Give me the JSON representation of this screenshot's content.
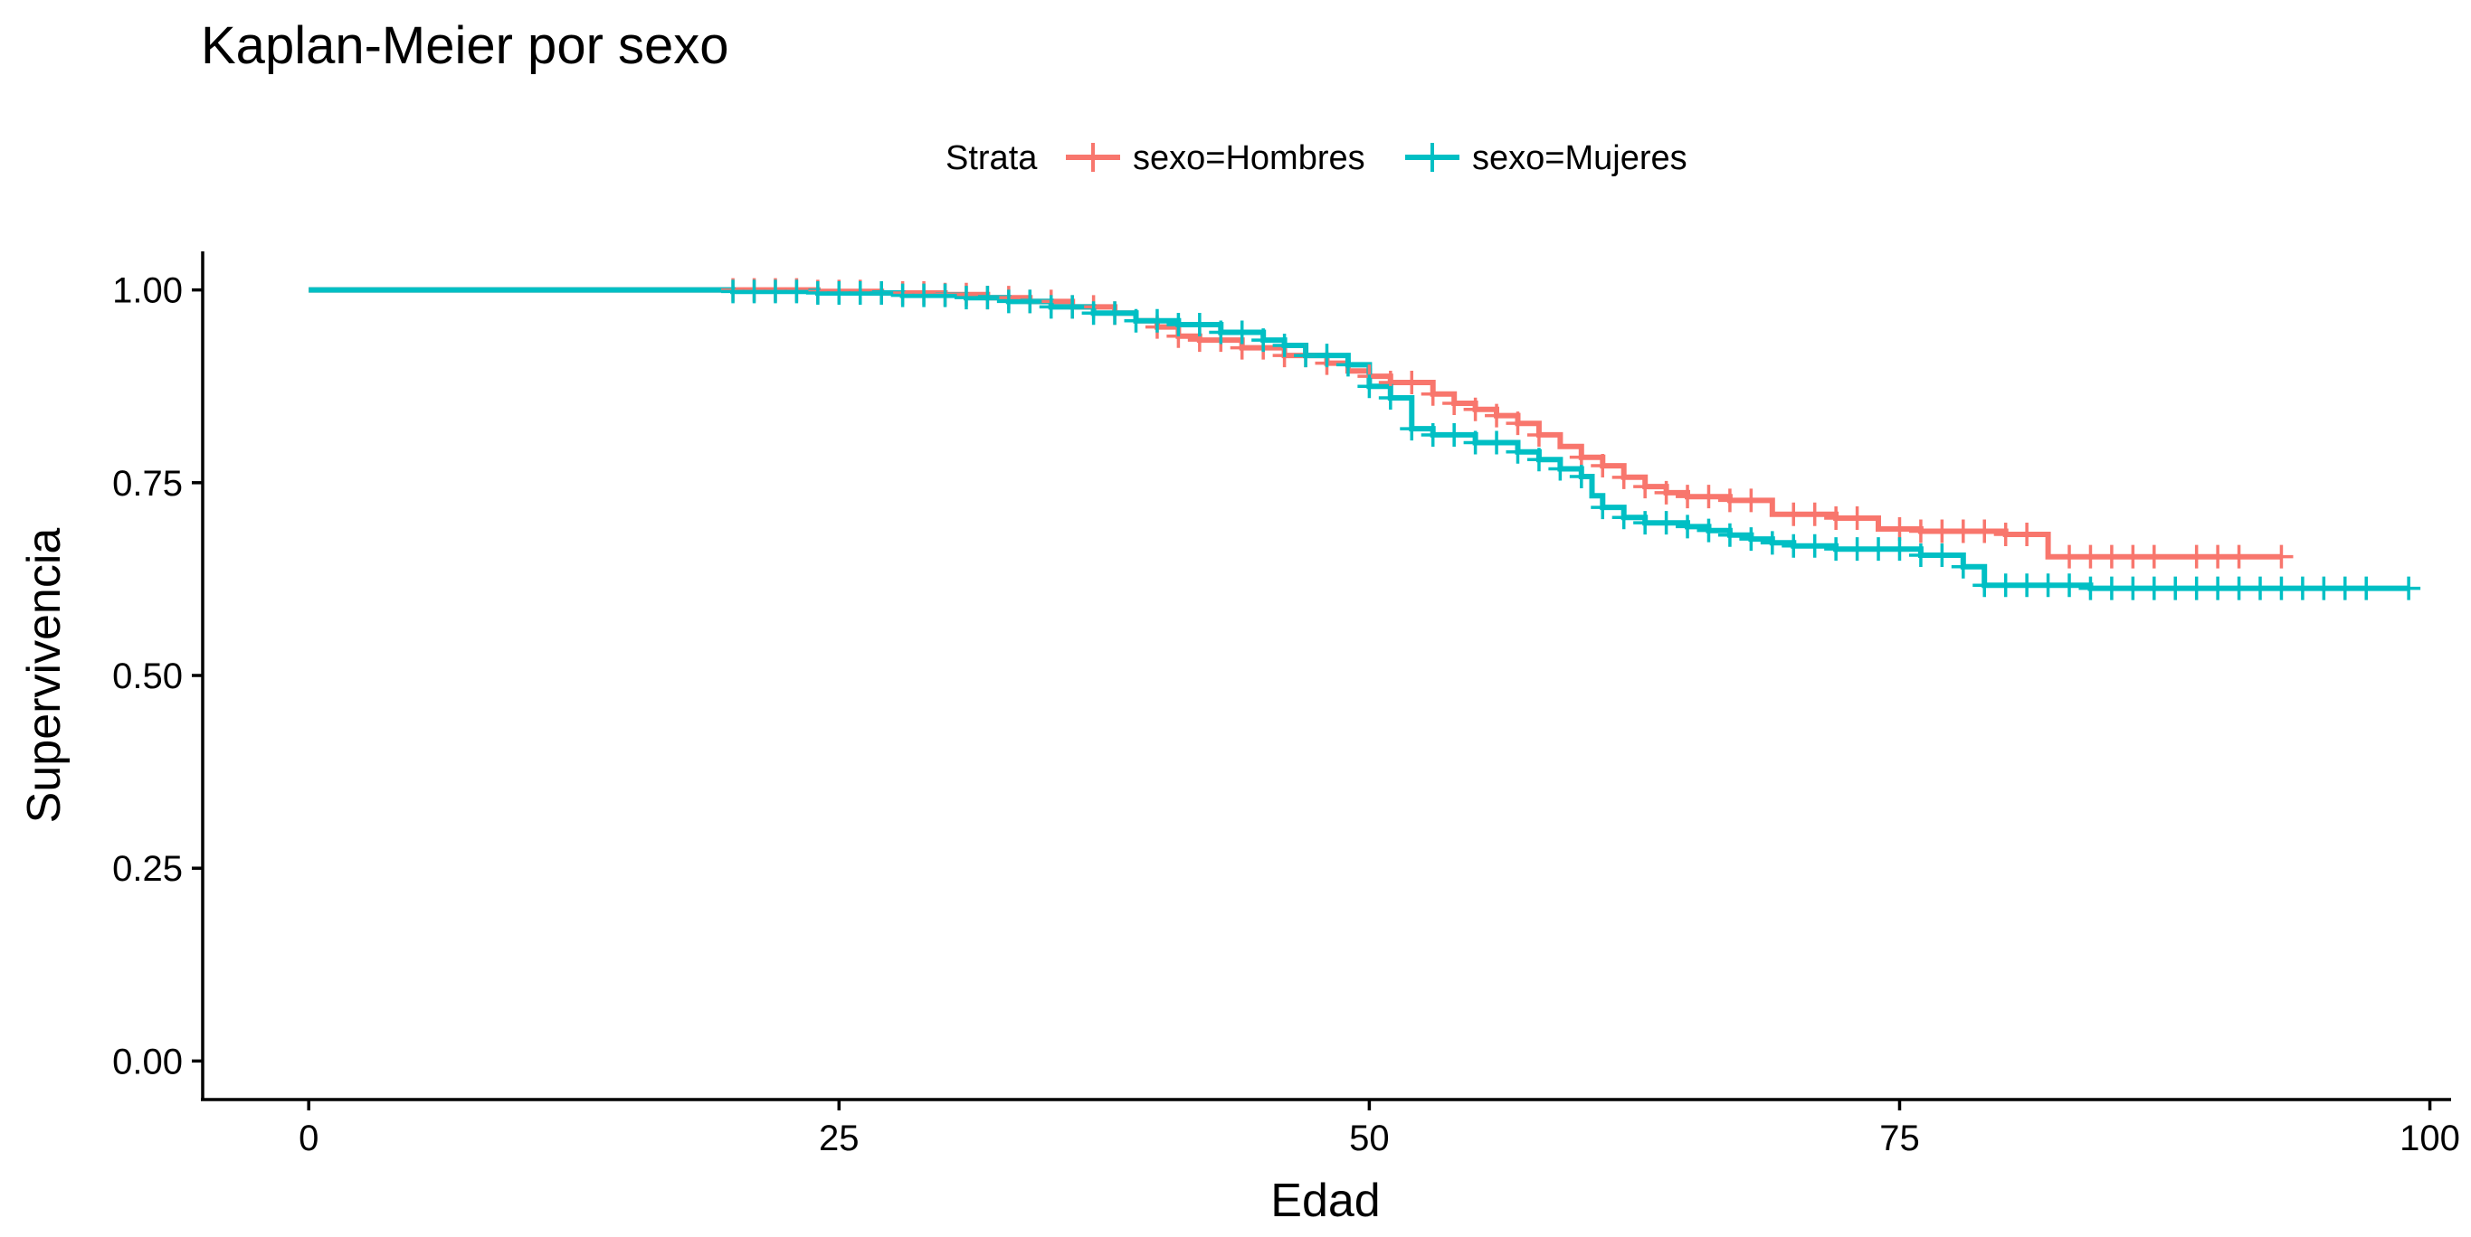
{
  "chart_data": {
    "type": "line",
    "title": "Kaplan-Meier por sexo",
    "xlabel": "Edad",
    "ylabel": "Supervivencia",
    "xlim": [
      -5,
      101
    ],
    "ylim": [
      -0.05,
      1.05
    ],
    "x_ticks": [
      0,
      25,
      50,
      75,
      100
    ],
    "x_tick_labels": [
      "0",
      "25",
      "50",
      "75",
      "100"
    ],
    "y_ticks": [
      0,
      0.25,
      0.5,
      0.75,
      1
    ],
    "y_tick_labels": [
      "0.00",
      "0.25",
      "0.50",
      "0.75",
      "1.00"
    ],
    "grid": false,
    "legend": {
      "title": "Strata",
      "position": "top",
      "entries": [
        "sexo=Hombres",
        "sexo=Mujeres"
      ]
    },
    "series": [
      {
        "name": "sexo=Hombres",
        "color": "#F8766D",
        "steps": [
          [
            0,
            1.0
          ],
          [
            24,
            0.998
          ],
          [
            27,
            0.996
          ],
          [
            30,
            0.994
          ],
          [
            32,
            0.99
          ],
          [
            34,
            0.985
          ],
          [
            36,
            0.978
          ],
          [
            38,
            0.97
          ],
          [
            39,
            0.96
          ],
          [
            40,
            0.952
          ],
          [
            41,
            0.94
          ],
          [
            42,
            0.935
          ],
          [
            44,
            0.925
          ],
          [
            46,
            0.915
          ],
          [
            48,
            0.905
          ],
          [
            49,
            0.895
          ],
          [
            50,
            0.888
          ],
          [
            51,
            0.88
          ],
          [
            53,
            0.865
          ],
          [
            54,
            0.853
          ],
          [
            55,
            0.845
          ],
          [
            56,
            0.837
          ],
          [
            57,
            0.827
          ],
          [
            58,
            0.812
          ],
          [
            59,
            0.797
          ],
          [
            60,
            0.783
          ],
          [
            61,
            0.772
          ],
          [
            62,
            0.757
          ],
          [
            63,
            0.745
          ],
          [
            64,
            0.737
          ],
          [
            65,
            0.732
          ],
          [
            67,
            0.727
          ],
          [
            69,
            0.709
          ],
          [
            72,
            0.704
          ],
          [
            74,
            0.69
          ],
          [
            76,
            0.687
          ],
          [
            80,
            0.683
          ],
          [
            82,
            0.654
          ],
          [
            93,
            0.654
          ]
        ],
        "censor_x": [
          20,
          21,
          22,
          23,
          24,
          25,
          26,
          27,
          28,
          29,
          30,
          31,
          32,
          33,
          34,
          35,
          36,
          37,
          38,
          40,
          41,
          42,
          43,
          44,
          45,
          46,
          47,
          48,
          50,
          51,
          52,
          53,
          54,
          55,
          56,
          57,
          58,
          60,
          61,
          62,
          63,
          64,
          65,
          66,
          67,
          68,
          70,
          71,
          72,
          73,
          75,
          76,
          77,
          78,
          79,
          80,
          81,
          83,
          84,
          85,
          86,
          87,
          89,
          90,
          91,
          93
        ]
      },
      {
        "name": "sexo=Mujeres",
        "color": "#00BFC4",
        "steps": [
          [
            0,
            1.0
          ],
          [
            20,
            0.998
          ],
          [
            24,
            0.996
          ],
          [
            28,
            0.993
          ],
          [
            31,
            0.99
          ],
          [
            33,
            0.985
          ],
          [
            35,
            0.978
          ],
          [
            37,
            0.97
          ],
          [
            39,
            0.96
          ],
          [
            41,
            0.955
          ],
          [
            43,
            0.945
          ],
          [
            45,
            0.935
          ],
          [
            46,
            0.928
          ],
          [
            47,
            0.915
          ],
          [
            49,
            0.903
          ],
          [
            50,
            0.875
          ],
          [
            51,
            0.86
          ],
          [
            52,
            0.82
          ],
          [
            53,
            0.812
          ],
          [
            55,
            0.802
          ],
          [
            57,
            0.79
          ],
          [
            58,
            0.78
          ],
          [
            59,
            0.768
          ],
          [
            60,
            0.758
          ],
          [
            60.5,
            0.733
          ],
          [
            61,
            0.718
          ],
          [
            62,
            0.705
          ],
          [
            63,
            0.698
          ],
          [
            65,
            0.693
          ],
          [
            66,
            0.688
          ],
          [
            67,
            0.682
          ],
          [
            68,
            0.677
          ],
          [
            69,
            0.672
          ],
          [
            70,
            0.668
          ],
          [
            72,
            0.664
          ],
          [
            76,
            0.656
          ],
          [
            78,
            0.641
          ],
          [
            79,
            0.617
          ],
          [
            84,
            0.613
          ],
          [
            99,
            0.613
          ]
        ],
        "censor_x": [
          20,
          21,
          22,
          23,
          24,
          25,
          26,
          27,
          28,
          29,
          30,
          31,
          32,
          33,
          34,
          35,
          36,
          37,
          38,
          39,
          40,
          41,
          42,
          43,
          44,
          45,
          46,
          47,
          48,
          49,
          50,
          51,
          52,
          53,
          54,
          55,
          56,
          57,
          58,
          59,
          60,
          61,
          62,
          63,
          64,
          65,
          66,
          67,
          68,
          69,
          70,
          71,
          72,
          73,
          74,
          75,
          76,
          77,
          78,
          79,
          80,
          81,
          82,
          83,
          84,
          85,
          86,
          87,
          88,
          89,
          90,
          91,
          92,
          93,
          94,
          95,
          96,
          97,
          99
        ]
      }
    ]
  }
}
